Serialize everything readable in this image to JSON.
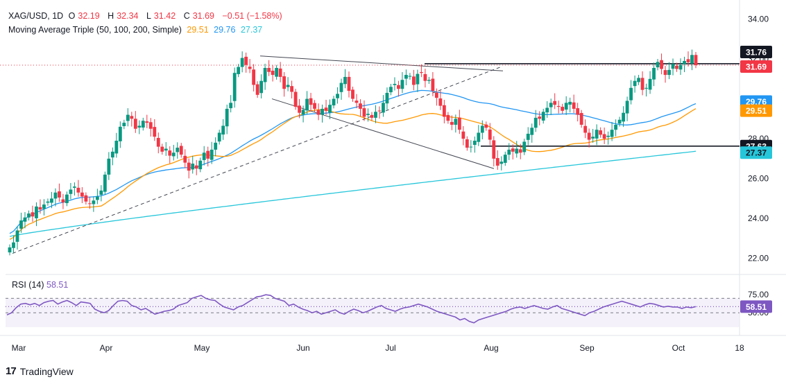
{
  "header": {
    "symbol": "XAG/USD, 1D",
    "o_label": "O",
    "o": "32.19",
    "h_label": "H",
    "h": "32.34",
    "l_label": "L",
    "l": "31.42",
    "c_label": "C",
    "c": "31.69",
    "change": "−0.51 (−1.58%)",
    "ma_label": "Moving Average Triple (50, 100, 200, Simple)",
    "ma50": "29.51",
    "ma100": "29.76",
    "ma200": "27.37"
  },
  "rsi_label": {
    "name": "RSI (14)",
    "value": "58.51"
  },
  "branding": "TradingView",
  "colors": {
    "up": "#089981",
    "down": "#f23645",
    "ma50": "#ff9800",
    "ma100": "#2196f3",
    "ma200": "#26c6da",
    "rsi": "#7e57c2",
    "text": "#131722",
    "grid_text": "#131722"
  },
  "chart_data": {
    "type": "candlestick",
    "title": "XAG/USD, 1D",
    "price_axis": {
      "ticks": [
        "34.00",
        "32.00",
        "30.00",
        "28.00",
        "26.00",
        "24.00",
        "22.00"
      ],
      "ylim": [
        21.4,
        34.4
      ]
    },
    "time_axis": {
      "ticks": [
        "Mar",
        "Apr",
        "May",
        "Jun",
        "Jul",
        "Aug",
        "Sep",
        "Oct",
        "18"
      ]
    },
    "price_labels": [
      {
        "value": 31.76,
        "text": "31.76",
        "style": "line"
      },
      {
        "value": 31.69,
        "text": "31.69",
        "style": "last"
      },
      {
        "value": 29.76,
        "text": "29.76",
        "style": "ma100"
      },
      {
        "value": 29.51,
        "text": "29.51",
        "style": "ma50"
      },
      {
        "value": 27.63,
        "text": "27.63",
        "style": "line"
      },
      {
        "value": 27.37,
        "text": "27.37",
        "style": "ma200"
      }
    ],
    "closes": [
      22.55,
      22.8,
      23.4,
      23.9,
      24.05,
      24.25,
      24.1,
      24.6,
      24.45,
      24.7,
      24.85,
      25.0,
      25.3,
      25.05,
      24.8,
      25.2,
      25.45,
      25.6,
      25.3,
      25.1,
      24.85,
      24.75,
      24.9,
      25.1,
      25.4,
      26.2,
      27.0,
      27.35,
      27.9,
      28.6,
      28.8,
      29.2,
      29.0,
      28.5,
      28.65,
      28.9,
      28.8,
      28.5,
      28.1,
      27.6,
      27.35,
      27.5,
      27.15,
      27.3,
      27.55,
      27.2,
      26.8,
      26.4,
      26.75,
      26.5,
      26.9,
      27.3,
      27.0,
      27.45,
      27.8,
      28.3,
      28.65,
      29.5,
      29.8,
      31.3,
      31.6,
      32.05,
      31.7,
      31.5,
      30.7,
      30.2,
      30.9,
      31.55,
      31.35,
      31.2,
      31.55,
      31.1,
      30.5,
      30.7,
      30.35,
      29.6,
      29.3,
      29.45,
      30.0,
      29.7,
      29.5,
      29.2,
      29.5,
      29.4,
      29.7,
      30.0,
      30.25,
      30.8,
      31.1,
      30.4,
      30.0,
      29.8,
      29.5,
      29.1,
      29.25,
      29.05,
      29.35,
      29.4,
      29.8,
      30.3,
      30.6,
      30.75,
      30.5,
      30.95,
      31.2,
      31.15,
      30.7,
      31.25,
      31.3,
      30.9,
      30.95,
      30.4,
      30.05,
      29.65,
      29.1,
      28.9,
      28.7,
      29.0,
      28.45,
      28.0,
      27.55,
      27.6,
      27.9,
      28.3,
      28.65,
      28.55,
      27.95,
      27.0,
      26.65,
      26.85,
      27.2,
      27.45,
      27.35,
      27.5,
      27.3,
      27.85,
      28.25,
      28.55,
      29.05,
      29.0,
      29.35,
      29.55,
      29.8,
      29.7,
      29.6,
      29.4,
      29.8,
      29.85,
      29.5,
      29.2,
      28.7,
      28.3,
      27.95,
      28.1,
      28.45,
      28.2,
      28.0,
      28.15,
      28.45,
      28.7,
      28.95,
      29.3,
      29.9,
      30.55,
      30.9,
      31.05,
      30.45,
      30.55,
      31.0,
      31.55,
      31.85,
      31.5,
      31.2,
      31.45,
      31.75,
      31.5,
      31.7,
      31.9,
      31.83,
      32.2,
      31.69
    ],
    "resistance_line": 31.76,
    "support_line": 27.63,
    "ma_series": [
      {
        "name": "MA 50",
        "color": "#ff9800",
        "last": 29.51
      },
      {
        "name": "MA 100",
        "color": "#2196f3",
        "last": 29.76
      },
      {
        "name": "MA 200",
        "color": "#26c6da",
        "last": 27.37
      }
    ],
    "rsi": {
      "label": "RSI (14)",
      "levels": [
        "75.00",
        "50.00"
      ],
      "last": 58.51,
      "values": [
        47,
        50,
        57,
        62,
        63,
        61,
        63,
        60,
        64,
        66,
        67,
        62,
        65,
        67,
        64,
        60,
        65,
        64,
        63,
        55,
        52,
        50,
        53,
        60,
        66,
        67,
        66,
        60,
        58,
        54,
        56,
        52,
        48,
        50,
        52,
        53,
        55,
        60,
        62,
        64,
        70,
        72,
        74,
        70,
        68,
        67,
        62,
        58,
        56,
        54,
        58,
        60,
        64,
        68,
        72,
        73,
        75,
        74,
        70,
        68,
        66,
        60,
        62,
        58,
        55,
        53,
        50,
        52,
        48,
        50,
        52,
        54,
        50,
        48,
        52,
        55,
        53,
        50,
        52,
        55,
        58,
        60,
        56,
        54,
        52,
        55,
        57,
        58,
        60,
        62,
        60,
        58,
        55,
        52,
        50,
        48,
        46,
        44,
        40,
        42,
        38,
        36,
        40,
        42,
        44,
        46,
        48,
        50,
        52,
        55,
        57,
        58,
        56,
        58,
        60,
        58,
        56,
        55,
        58,
        60,
        56,
        54,
        52,
        50,
        48,
        46,
        50,
        52,
        55,
        58,
        60,
        62,
        64,
        66,
        64,
        62,
        60,
        58,
        61,
        63,
        62,
        60,
        58,
        59,
        58,
        58,
        56,
        58,
        57,
        58.51
      ]
    }
  }
}
